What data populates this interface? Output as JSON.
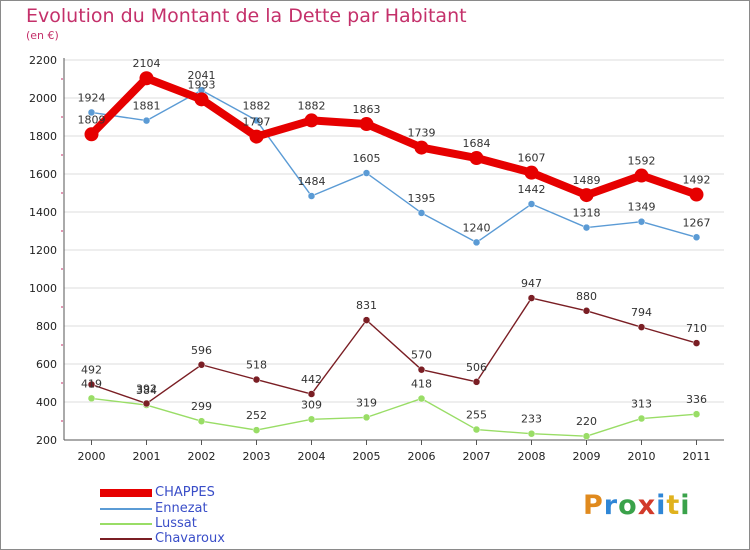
{
  "title": "Evolution du Montant de la Dette par Habitant",
  "subtitle": "(en €)",
  "logo": "Proxiti",
  "chart_data": {
    "type": "line",
    "title": "Evolution du Montant de la Dette par Habitant",
    "ylabel": "(en €)",
    "xlabel": "",
    "ylim": [
      200,
      2200
    ],
    "yticks": [
      200,
      400,
      600,
      800,
      1000,
      1200,
      1400,
      1600,
      1800,
      2000,
      2200
    ],
    "categories": [
      "2000",
      "2001",
      "2002",
      "2003",
      "2004",
      "2005",
      "2006",
      "2007",
      "2008",
      "2009",
      "2010",
      "2011"
    ],
    "legend_position": "bottom-left",
    "series": [
      {
        "name": "CHAPPES",
        "color": "#e60000",
        "values": [
          1809,
          2104,
          1993,
          1797,
          1882,
          1863,
          1739,
          1684,
          1607,
          1489,
          1592,
          1492
        ]
      },
      {
        "name": "Ennezat",
        "color": "#5b9bd5",
        "values": [
          1924,
          1881,
          2041,
          1882,
          1484,
          1605,
          1395,
          1240,
          1442,
          1318,
          1349,
          1267
        ]
      },
      {
        "name": "Lussat",
        "color": "#99dd66",
        "values": [
          419,
          384,
          299,
          252,
          309,
          319,
          418,
          255,
          233,
          220,
          313,
          336
        ]
      },
      {
        "name": "Chavaroux",
        "color": "#7a1e24",
        "values": [
          492,
          392,
          596,
          518,
          442,
          831,
          570,
          506,
          947,
          880,
          794,
          710
        ]
      }
    ]
  }
}
